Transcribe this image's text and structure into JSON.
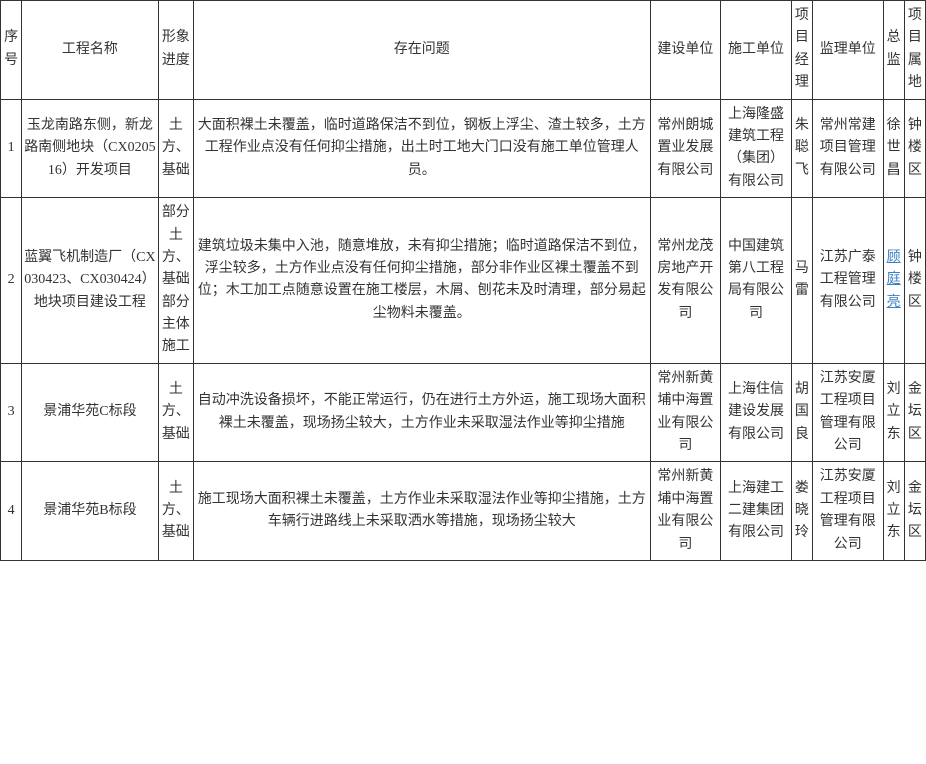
{
  "headers": {
    "seq": "序号",
    "name": "工程名称",
    "progress": "形象进度",
    "problem": "存在问题",
    "build": "建设单位",
    "construct": "施工单位",
    "pm": "项目经理",
    "supervise": "监理单位",
    "chief": "总监",
    "location": "项目属地"
  },
  "rows": [
    {
      "seq": "1",
      "name": "玉龙南路东侧，新龙路南侧地块（CX020516）开发项目",
      "progress": "土方、基础",
      "problem": "大面积裸土未覆盖，临时道路保洁不到位，钢板上浮尘、渣土较多，土方工程作业点没有任何抑尘措施，出土时工地大门口没有施工单位管理人员。",
      "build": "常州朗城置业发展有限公司",
      "construct": "上海隆盛建筑工程（集团）有限公司",
      "pm": "朱聪飞",
      "supervise": "常州常建项目管理有限公司",
      "chief": "徐世昌",
      "chief_link": false,
      "location": "钟楼区"
    },
    {
      "seq": "2",
      "name": "蓝翼飞机制造厂（CX030423、CX030424）地块项目建设工程",
      "progress": "部分土方、基础部分主体施工",
      "problem": "建筑垃圾未集中入池，随意堆放，未有抑尘措施；临时道路保洁不到位，浮尘较多，土方作业点没有任何抑尘措施，部分非作业区裸土覆盖不到位；木工加工点随意设置在施工楼层，木屑、刨花未及时清理，部分易起尘物料未覆盖。",
      "build": "常州龙茂房地产开发有限公司",
      "construct": "中国建筑第八工程局有限公司",
      "pm": "马雷",
      "supervise": "江苏广泰工程管理有限公司",
      "chief": "顾庭亮",
      "chief_link": true,
      "location": "钟楼区"
    },
    {
      "seq": "3",
      "name": "景浦华苑C标段",
      "progress": "土方、基础",
      "problem": "自动冲洗设备损坏，不能正常运行，仍在进行土方外运，施工现场大面积裸土未覆盖，现场扬尘较大，土方作业未采取湿法作业等抑尘措施",
      "build": "常州新黄埔中海置业有限公司",
      "construct": "上海住信建设发展有限公司",
      "pm": "胡国良",
      "supervise": "江苏安厦工程项目管理有限公司",
      "chief": "刘立东",
      "chief_link": false,
      "location": "金坛区"
    },
    {
      "seq": "4",
      "name": "景浦华苑B标段",
      "progress": "土方、基础",
      "problem": "施工现场大面积裸土未覆盖，土方作业未采取湿法作业等抑尘措施，土方车辆行进路线上未采取洒水等措施，现场扬尘较大",
      "build": "常州新黄埔中海置业有限公司",
      "construct": "上海建工二建集团有限公司",
      "pm": "娄晓玲",
      "supervise": "江苏安厦工程项目管理有限公司",
      "chief": "刘立东",
      "chief_link": false,
      "location": "金坛区"
    }
  ]
}
